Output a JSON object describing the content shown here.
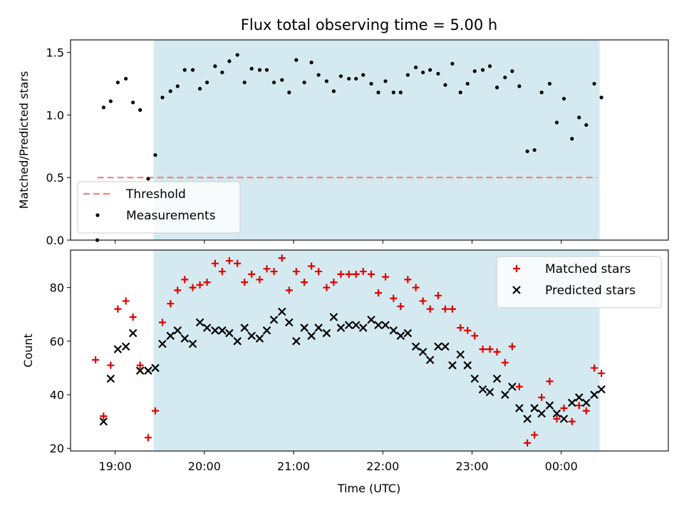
{
  "chart_data": {
    "type": "scatter",
    "title": "Flux total observing time = 5.00 h",
    "xlabel": "Time (UTC)",
    "x_unit": "hours UTC (24 = 00:00 next day)",
    "xlim": [
      18.5,
      25.2
    ],
    "xticks": [
      {
        "value": 19,
        "label": "19:00"
      },
      {
        "value": 20,
        "label": "20:00"
      },
      {
        "value": 21,
        "label": "21:00"
      },
      {
        "value": 22,
        "label": "22:00"
      },
      {
        "value": 23,
        "label": "23:00"
      },
      {
        "value": 24,
        "label": "00:00"
      }
    ],
    "shaded_span": {
      "x_start": 19.43,
      "x_end": 24.43,
      "color": "#d4eaf0"
    },
    "panels": [
      {
        "ylabel": "Matched/Predicted stars",
        "ylim": [
          0,
          1.6
        ],
        "yticks": [
          {
            "value": 0,
            "label": "0.0"
          },
          {
            "value": 0.5,
            "label": "0.5"
          },
          {
            "value": 1.0,
            "label": "1.0"
          },
          {
            "value": 1.5,
            "label": "1.5"
          }
        ],
        "legend": {
          "position": "lower-left"
        },
        "series": [
          {
            "name": "Threshold",
            "kind": "line",
            "style": "dashed",
            "color": "#f08080",
            "points": [
              [
                18.8,
                0.5
              ],
              [
                24.4,
                0.5
              ]
            ]
          },
          {
            "name": "Measurements",
            "kind": "dot",
            "color": "#000000",
            "points": [
              [
                18.8,
                0.0
              ],
              [
                18.87,
                1.06
              ],
              [
                18.95,
                1.11
              ],
              [
                19.03,
                1.26
              ],
              [
                19.12,
                1.29
              ],
              [
                19.2,
                1.1
              ],
              [
                19.28,
                1.04
              ],
              [
                19.37,
                0.49
              ],
              [
                19.45,
                0.68
              ],
              [
                19.53,
                1.14
              ],
              [
                19.62,
                1.19
              ],
              [
                19.7,
                1.23
              ],
              [
                19.78,
                1.36
              ],
              [
                19.87,
                1.36
              ],
              [
                19.95,
                1.21
              ],
              [
                20.03,
                1.26
              ],
              [
                20.12,
                1.39
              ],
              [
                20.2,
                1.34
              ],
              [
                20.28,
                1.43
              ],
              [
                20.37,
                1.48
              ],
              [
                20.45,
                1.26
              ],
              [
                20.53,
                1.37
              ],
              [
                20.62,
                1.36
              ],
              [
                20.7,
                1.36
              ],
              [
                20.78,
                1.26
              ],
              [
                20.87,
                1.28
              ],
              [
                20.95,
                1.18
              ],
              [
                21.03,
                1.44
              ],
              [
                21.12,
                1.26
              ],
              [
                21.2,
                1.42
              ],
              [
                21.28,
                1.32
              ],
              [
                21.37,
                1.27
              ],
              [
                21.45,
                1.19
              ],
              [
                21.53,
                1.31
              ],
              [
                21.62,
                1.29
              ],
              [
                21.7,
                1.29
              ],
              [
                21.78,
                1.32
              ],
              [
                21.87,
                1.25
              ],
              [
                21.95,
                1.18
              ],
              [
                22.03,
                1.27
              ],
              [
                22.12,
                1.18
              ],
              [
                22.2,
                1.18
              ],
              [
                22.28,
                1.32
              ],
              [
                22.37,
                1.38
              ],
              [
                22.45,
                1.34
              ],
              [
                22.53,
                1.36
              ],
              [
                22.62,
                1.33
              ],
              [
                22.7,
                1.24
              ],
              [
                22.78,
                1.41
              ],
              [
                22.87,
                1.18
              ],
              [
                22.95,
                1.25
              ],
              [
                23.03,
                1.35
              ],
              [
                23.12,
                1.36
              ],
              [
                23.2,
                1.39
              ],
              [
                23.28,
                1.22
              ],
              [
                23.37,
                1.3
              ],
              [
                23.45,
                1.35
              ],
              [
                23.53,
                1.23
              ],
              [
                23.62,
                0.71
              ],
              [
                23.7,
                0.72
              ],
              [
                23.78,
                1.18
              ],
              [
                23.87,
                1.25
              ],
              [
                23.95,
                0.94
              ],
              [
                24.03,
                1.13
              ],
              [
                24.12,
                0.81
              ],
              [
                24.2,
                0.98
              ],
              [
                24.28,
                0.92
              ],
              [
                24.37,
                1.25
              ],
              [
                24.45,
                1.14
              ]
            ]
          }
        ]
      },
      {
        "ylabel": "Count",
        "ylim": [
          19,
          94
        ],
        "yticks": [
          {
            "value": 20,
            "label": "20"
          },
          {
            "value": 40,
            "label": "40"
          },
          {
            "value": 60,
            "label": "60"
          },
          {
            "value": 80,
            "label": "80"
          }
        ],
        "legend": {
          "position": "upper-right"
        },
        "series": [
          {
            "name": "Matched stars",
            "kind": "plus",
            "color": "#e00000",
            "points": [
              [
                18.78,
                53
              ],
              [
                18.87,
                32
              ],
              [
                18.95,
                51
              ],
              [
                19.03,
                72
              ],
              [
                19.12,
                75
              ],
              [
                19.2,
                69
              ],
              [
                19.28,
                51
              ],
              [
                19.37,
                24
              ],
              [
                19.45,
                34
              ],
              [
                19.53,
                67
              ],
              [
                19.62,
                74
              ],
              [
                19.7,
                79
              ],
              [
                19.78,
                83
              ],
              [
                19.87,
                80
              ],
              [
                19.95,
                81
              ],
              [
                20.03,
                82
              ],
              [
                20.12,
                89
              ],
              [
                20.2,
                86
              ],
              [
                20.28,
                90
              ],
              [
                20.37,
                89
              ],
              [
                20.45,
                82
              ],
              [
                20.53,
                85
              ],
              [
                20.62,
                83
              ],
              [
                20.7,
                87
              ],
              [
                20.78,
                86
              ],
              [
                20.87,
                91
              ],
              [
                20.95,
                79
              ],
              [
                21.03,
                86
              ],
              [
                21.12,
                82
              ],
              [
                21.2,
                88
              ],
              [
                21.28,
                86
              ],
              [
                21.37,
                80
              ],
              [
                21.45,
                82
              ],
              [
                21.53,
                85
              ],
              [
                21.62,
                85
              ],
              [
                21.7,
                85
              ],
              [
                21.78,
                86
              ],
              [
                21.87,
                85
              ],
              [
                21.95,
                78
              ],
              [
                22.03,
                84
              ],
              [
                22.12,
                76
              ],
              [
                22.2,
                73
              ],
              [
                22.28,
                83
              ],
              [
                22.37,
                80
              ],
              [
                22.45,
                75
              ],
              [
                22.53,
                72
              ],
              [
                22.62,
                77
              ],
              [
                22.7,
                72
              ],
              [
                22.78,
                72
              ],
              [
                22.87,
                65
              ],
              [
                22.95,
                64
              ],
              [
                23.03,
                62
              ],
              [
                23.12,
                57
              ],
              [
                23.2,
                57
              ],
              [
                23.28,
                56
              ],
              [
                23.37,
                52
              ],
              [
                23.45,
                58
              ],
              [
                23.53,
                43
              ],
              [
                23.62,
                22
              ],
              [
                23.7,
                25
              ],
              [
                23.78,
                39
              ],
              [
                23.87,
                45
              ],
              [
                23.95,
                31
              ],
              [
                24.03,
                35
              ],
              [
                24.12,
                30
              ],
              [
                24.2,
                36
              ],
              [
                24.28,
                34
              ],
              [
                24.37,
                50
              ],
              [
                24.45,
                48
              ]
            ]
          },
          {
            "name": "Predicted stars",
            "kind": "cross",
            "color": "#000000",
            "points": [
              [
                18.87,
                30
              ],
              [
                18.95,
                46
              ],
              [
                19.03,
                57
              ],
              [
                19.12,
                58
              ],
              [
                19.2,
                63
              ],
              [
                19.28,
                49
              ],
              [
                19.37,
                49
              ],
              [
                19.45,
                50
              ],
              [
                19.53,
                59
              ],
              [
                19.62,
                62
              ],
              [
                19.7,
                64
              ],
              [
                19.78,
                61
              ],
              [
                19.87,
                59
              ],
              [
                19.95,
                67
              ],
              [
                20.03,
                65
              ],
              [
                20.12,
                64
              ],
              [
                20.2,
                64
              ],
              [
                20.28,
                63
              ],
              [
                20.37,
                60
              ],
              [
                20.45,
                65
              ],
              [
                20.53,
                62
              ],
              [
                20.62,
                61
              ],
              [
                20.7,
                64
              ],
              [
                20.78,
                68
              ],
              [
                20.87,
                71
              ],
              [
                20.95,
                67
              ],
              [
                21.03,
                60
              ],
              [
                21.12,
                65
              ],
              [
                21.2,
                62
              ],
              [
                21.28,
                65
              ],
              [
                21.37,
                63
              ],
              [
                21.45,
                69
              ],
              [
                21.53,
                65
              ],
              [
                21.62,
                66
              ],
              [
                21.7,
                66
              ],
              [
                21.78,
                65
              ],
              [
                21.87,
                68
              ],
              [
                21.95,
                66
              ],
              [
                22.03,
                66
              ],
              [
                22.12,
                64
              ],
              [
                22.2,
                62
              ],
              [
                22.28,
                63
              ],
              [
                22.37,
                58
              ],
              [
                22.45,
                56
              ],
              [
                22.53,
                53
              ],
              [
                22.62,
                58
              ],
              [
                22.7,
                58
              ],
              [
                22.78,
                51
              ],
              [
                22.87,
                55
              ],
              [
                22.95,
                51
              ],
              [
                23.03,
                46
              ],
              [
                23.12,
                42
              ],
              [
                23.2,
                41
              ],
              [
                23.28,
                46
              ],
              [
                23.37,
                40
              ],
              [
                23.45,
                43
              ],
              [
                23.53,
                35
              ],
              [
                23.62,
                31
              ],
              [
                23.7,
                35
              ],
              [
                23.78,
                33
              ],
              [
                23.87,
                36
              ],
              [
                23.95,
                33
              ],
              [
                24.03,
                31
              ],
              [
                24.12,
                37
              ],
              [
                24.2,
                39
              ],
              [
                24.28,
                37
              ],
              [
                24.37,
                40
              ],
              [
                24.45,
                42
              ]
            ]
          }
        ]
      }
    ]
  }
}
